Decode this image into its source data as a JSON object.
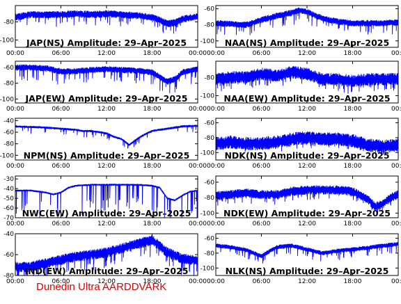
{
  "footer": "Dunedin Ultra AARDDVARK",
  "colors": {
    "trace": "#0000ff",
    "axis": "#000000",
    "footer": "#e00000"
  },
  "chart_data": [
    {
      "type": "line",
      "title": "JAP(NS) Amplitude: 29–Apr–2025",
      "xticks": [
        "00:00",
        "06:00",
        "12:00",
        "18:00",
        "00:00"
      ],
      "yticks": [
        "-80",
        "-100"
      ],
      "ylim": [
        -108,
        -62
      ],
      "x_hours": [
        0,
        24
      ],
      "baseline_hours": [
        0,
        2,
        4,
        6,
        8,
        10,
        12,
        14,
        16,
        18,
        19,
        20,
        21,
        22,
        24
      ],
      "baseline_values": [
        -75,
        -72,
        -72,
        -72,
        -71,
        -72,
        -71,
        -72,
        -73,
        -75,
        -78,
        -82,
        -81,
        -77,
        -74
      ],
      "band": 4,
      "spike_depth": 10
    },
    {
      "type": "line",
      "title": "NAA(NS) Amplitude: 29–Apr–2025",
      "xticks": [
        "00:00",
        "06:00",
        "12:00",
        "18:00",
        "00:00"
      ],
      "yticks": [
        "-60",
        "-80",
        "-100"
      ],
      "ylim": [
        -108,
        -56
      ],
      "x_hours": [
        0,
        24
      ],
      "baseline_hours": [
        0,
        2,
        4,
        6,
        8,
        10,
        11,
        12,
        14,
        16,
        18,
        20,
        22,
        24
      ],
      "baseline_values": [
        -78,
        -79,
        -80,
        -74,
        -69,
        -65,
        -62,
        -64,
        -72,
        -76,
        -78,
        -78,
        -78,
        -77
      ],
      "band": 4,
      "spike_depth": 12
    },
    {
      "type": "line",
      "title": "JAP(EW) Amplitude: 29–Apr–2025",
      "xticks": [
        "00:00",
        "06:00",
        "12:00",
        "18:00",
        "00:00"
      ],
      "yticks": [
        "-60",
        "-80",
        "-100"
      ],
      "ylim": [
        -105,
        -52
      ],
      "x_hours": [
        0,
        24
      ],
      "baseline_hours": [
        0,
        2,
        4,
        6,
        8,
        10,
        12,
        14,
        16,
        18,
        19,
        20,
        21,
        22,
        24
      ],
      "baseline_values": [
        -60,
        -60,
        -61,
        -65,
        -65,
        -63,
        -62,
        -63,
        -64,
        -66,
        -72,
        -78,
        -75,
        -66,
        -62
      ],
      "band": 4,
      "spike_depth": 14
    },
    {
      "type": "line",
      "title": "NAA(EW) Amplitude: 29–Apr–2025",
      "xticks": [
        "00:00",
        "06:00",
        "12:00",
        "18:00",
        "00:00"
      ],
      "yticks": [
        "-80",
        "-100"
      ],
      "ylim": [
        -108,
        -62
      ],
      "x_hours": [
        0,
        24
      ],
      "baseline_hours": [
        0,
        2,
        4,
        6,
        8,
        10,
        12,
        14,
        16,
        18,
        20,
        22,
        24
      ],
      "baseline_values": [
        -82,
        -80,
        -80,
        -76,
        -78,
        -74,
        -76,
        -82,
        -82,
        -84,
        -82,
        -82,
        -82
      ],
      "band": 7,
      "spike_depth": 8
    },
    {
      "type": "line",
      "title": "NPM(NS) Amplitude: 29–Apr–2025",
      "xticks": [
        "00:00",
        "06:00",
        "12:00",
        "18:00",
        "00:00"
      ],
      "yticks": [
        "-40",
        "-60",
        "-80",
        "-100"
      ],
      "ylim": [
        -108,
        -36
      ],
      "x_hours": [
        0,
        24
      ],
      "baseline_hours": [
        0,
        2,
        4,
        6,
        8,
        9,
        10,
        11,
        12,
        13,
        14,
        15,
        16,
        17,
        18,
        20,
        22,
        24
      ],
      "baseline_values": [
        -50,
        -51,
        -52,
        -54,
        -56,
        -58,
        -58,
        -60,
        -62,
        -68,
        -72,
        -82,
        -72,
        -64,
        -58,
        -54,
        -50,
        -49
      ],
      "band": 2,
      "spike_depth": 10
    },
    {
      "type": "line",
      "title": "NDK(NS) Amplitude: 29–Apr–2025",
      "xticks": [
        "00:00",
        "06:00",
        "12:00",
        "18:00",
        "00:00"
      ],
      "yticks": [
        "-60",
        "-80",
        "-100"
      ],
      "ylim": [
        -110,
        -54
      ],
      "x_hours": [
        0,
        24
      ],
      "baseline_hours": [
        0,
        2,
        4,
        6,
        8,
        10,
        12,
        14,
        16,
        18,
        20,
        22,
        24
      ],
      "baseline_values": [
        -88,
        -86,
        -88,
        -88,
        -86,
        -82,
        -80,
        -82,
        -82,
        -84,
        -90,
        -92,
        -90
      ],
      "band": 9,
      "spike_depth": 6
    },
    {
      "type": "line",
      "title": "NWC(EW) Amplitude: 29–Apr–2025",
      "xticks": [
        "00:00",
        "06:00",
        "12:00",
        "18:00",
        "00:00"
      ],
      "yticks": [
        "-30",
        "-40",
        "-50",
        "-60",
        "-70"
      ],
      "ylim": [
        -70,
        -27
      ],
      "x_hours": [
        0,
        24
      ],
      "baseline_hours": [
        0,
        2,
        3,
        4,
        5,
        6,
        7,
        8,
        10,
        12,
        14,
        16,
        18,
        19,
        20,
        21,
        22,
        23,
        24
      ],
      "baseline_values": [
        -42,
        -42,
        -43,
        -44,
        -46,
        -44,
        -39,
        -37,
        -36,
        -36,
        -36,
        -36,
        -37,
        -39,
        -50,
        -52,
        -47,
        -43,
        -42
      ],
      "band": 1,
      "spike_depth": 30
    },
    {
      "type": "line",
      "title": "NDK(EW) Amplitude: 29–Apr–2025",
      "xticks": [
        "00:00",
        "06:00",
        "12:00",
        "18:00",
        "00:00"
      ],
      "yticks": [
        "-60",
        "-80",
        "-100"
      ],
      "ylim": [
        -106,
        -52
      ],
      "x_hours": [
        0,
        24
      ],
      "baseline_hours": [
        0,
        2,
        4,
        6,
        8,
        10,
        12,
        14,
        16,
        18,
        20,
        21,
        22,
        23,
        24
      ],
      "baseline_values": [
        -78,
        -76,
        -74,
        -76,
        -76,
        -72,
        -70,
        -70,
        -70,
        -72,
        -82,
        -92,
        -88,
        -80,
        -76
      ],
      "band": 6,
      "spike_depth": 8
    },
    {
      "type": "line",
      "title": "IND(EW) Amplitude: 29–Apr–2025",
      "xticks": [
        "00:00",
        "06:00",
        "12:00",
        "18:00",
        "00:00"
      ],
      "yticks": [
        "-40",
        "-60",
        "-80"
      ],
      "ylim": [
        -80,
        -40
      ],
      "x_hours": [
        0,
        24
      ],
      "baseline_hours": [
        0,
        2,
        4,
        6,
        8,
        10,
        12,
        14,
        16,
        18,
        20,
        22,
        24
      ],
      "baseline_values": [
        -72,
        -72,
        -68,
        -65,
        -62,
        -60,
        -58,
        -54,
        -50,
        -46,
        -58,
        -64,
        -66
      ],
      "band": 5,
      "spike_depth": 12
    },
    {
      "type": "line",
      "title": "NLK(NS) Amplitude: 29–Apr–2025",
      "xticks": [
        "00:00",
        "06:00",
        "12:00",
        "18:00",
        "00:00"
      ],
      "yticks": [
        "-60",
        "-80",
        "-100"
      ],
      "ylim": [
        -110,
        -54
      ],
      "x_hours": [
        0,
        24
      ],
      "baseline_hours": [
        0,
        2,
        4,
        6,
        8,
        10,
        12,
        14,
        16,
        18,
        20,
        22,
        24
      ],
      "baseline_values": [
        -70,
        -72,
        -76,
        -84,
        -72,
        -70,
        -75,
        -80,
        -77,
        -75,
        -73,
        -70,
        -68
      ],
      "band": 3,
      "spike_depth": 10
    }
  ]
}
